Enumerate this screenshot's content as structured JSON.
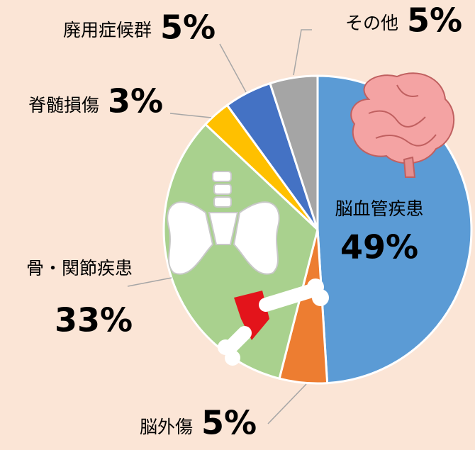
{
  "chart_data": {
    "type": "pie",
    "categories": [
      "脳血管疾患",
      "脳外傷",
      "骨・関節疾患",
      "脊髄損傷",
      "廃用症候群",
      "その他"
    ],
    "values": [
      49,
      5,
      33,
      3,
      5,
      5
    ],
    "value_labels": [
      "49%",
      "5%",
      "33%",
      "3%",
      "5%",
      "5%"
    ],
    "colors": [
      "#5b9bd5",
      "#ed7d31",
      "#a9d18e",
      "#ffc000",
      "#4472c4",
      "#a5a5a5"
    ]
  }
}
